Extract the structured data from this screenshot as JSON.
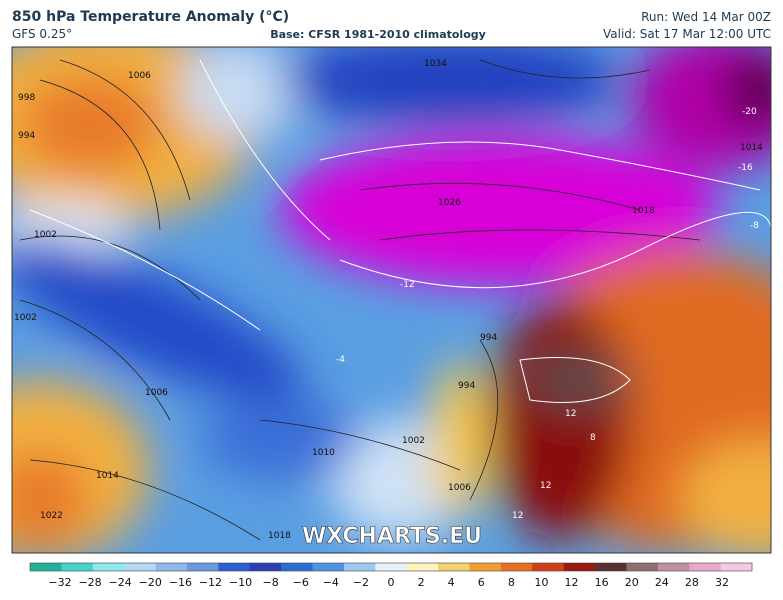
{
  "header": {
    "title": "850 hPa Temperature Anomaly (°C)",
    "model": "GFS 0.25°",
    "base": "Base: CFSR 1981-2010 climatology",
    "run": "Run: Wed 14 Mar 00Z",
    "valid": "Valid: Sat 17 Mar 12:00 UTC"
  },
  "map": {
    "watermark": "WXCHARTS.EU",
    "contour_labels": [
      "1006",
      "998",
      "994",
      "1002",
      "1002",
      "1006",
      "1010",
      "1014",
      "1022",
      "1018",
      "1002",
      "1006",
      "994",
      "994",
      "1026",
      "1034",
      "1018",
      "1014",
      "-20",
      "-16",
      "-8",
      "-12",
      "-4",
      "12",
      "12",
      "12",
      "8"
    ]
  },
  "colorbar": {
    "labels": [
      "−32",
      "−28",
      "−24",
      "−20",
      "−16",
      "−12",
      "−10",
      "−8",
      "−6",
      "−4",
      "−2",
      "0",
      "2",
      "4",
      "6",
      "8",
      "10",
      "12",
      "16",
      "20",
      "24",
      "28",
      "32"
    ],
    "colors": [
      "#1fb39a",
      "#44d4c8",
      "#8ee8ee",
      "#b5d8f5",
      "#8fb8ec",
      "#6a98e0",
      "#2b5fd0",
      "#2a3fb8",
      "#2f6bd6",
      "#4f93e2",
      "#9fc8f0",
      "#e8f0f8",
      "#fbf4c0",
      "#f7d070",
      "#f0a030",
      "#e87020",
      "#d04018",
      "#9a1a10",
      "#5a3030",
      "#8a7070",
      "#c090a0",
      "#e8a8c8",
      "#f4c8e0"
    ]
  }
}
